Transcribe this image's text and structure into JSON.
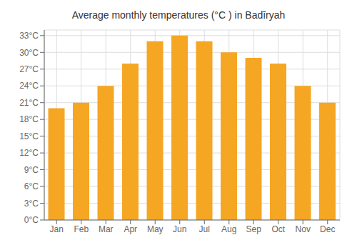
{
  "chart_data": {
    "type": "bar",
    "title": "Average monthly temperatures (°C ) in Badīryah",
    "categories": [
      "Jan",
      "Feb",
      "Mar",
      "Apr",
      "May",
      "Jun",
      "Jul",
      "Aug",
      "Sep",
      "Oct",
      "Nov",
      "Dec"
    ],
    "values": [
      20,
      21,
      24,
      28,
      32,
      33,
      32,
      30,
      29,
      28,
      24,
      21
    ],
    "color": "#F5A623",
    "ylim": [
      0,
      34
    ],
    "yticks": [
      {
        "value": 0,
        "label": "0°C"
      },
      {
        "value": 3,
        "label": "3°C"
      },
      {
        "value": 6,
        "label": "6°C"
      },
      {
        "value": 9,
        "label": "9°C"
      },
      {
        "value": 12,
        "label": "12°C"
      },
      {
        "value": 15,
        "label": "15°C"
      },
      {
        "value": 18,
        "label": "18°C"
      },
      {
        "value": 21,
        "label": "21°C"
      },
      {
        "value": 24,
        "label": "24°C"
      },
      {
        "value": 27,
        "label": "27°C"
      },
      {
        "value": 30,
        "label": "30°C"
      },
      {
        "value": 33,
        "label": "33°C"
      }
    ],
    "grid": true
  }
}
